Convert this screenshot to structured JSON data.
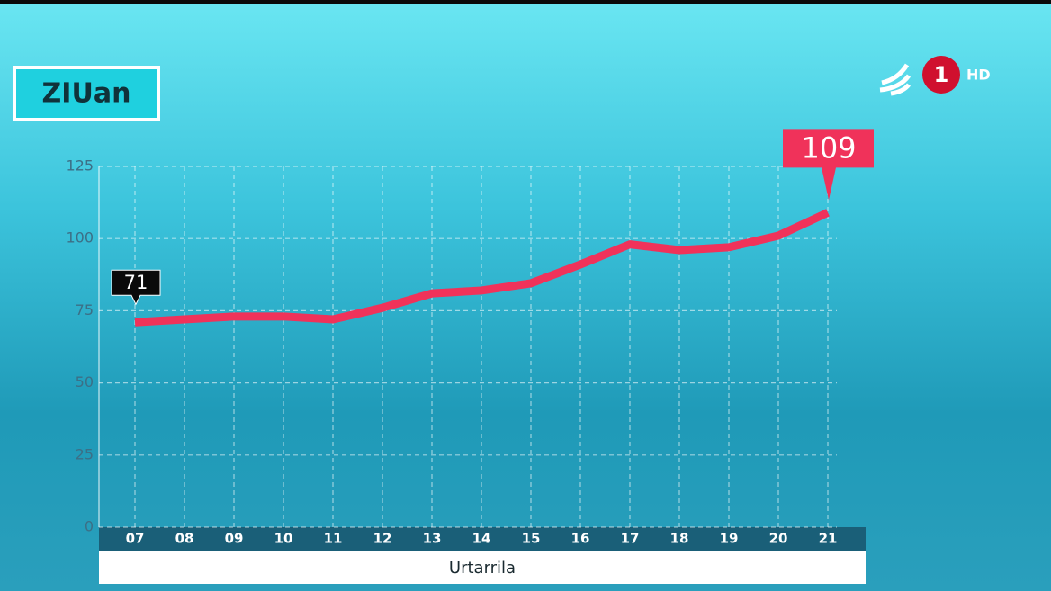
{
  "chart_data": {
    "type": "line",
    "title": "ZIUan",
    "x_label": "Urtarrila",
    "categories": [
      "07",
      "08",
      "09",
      "10",
      "11",
      "12",
      "13",
      "14",
      "15",
      "16",
      "17",
      "18",
      "19",
      "20",
      "21"
    ],
    "values": [
      71,
      72,
      73,
      73,
      72,
      76,
      81,
      82,
      84.5,
      91,
      98,
      96,
      97,
      101,
      109
    ],
    "color": "#f0325a",
    "ylim": [
      0,
      125
    ],
    "yticks": [
      0,
      25,
      50,
      75,
      100,
      125
    ],
    "grid": true
  },
  "channel": {
    "number": "1",
    "badge": "HD"
  }
}
